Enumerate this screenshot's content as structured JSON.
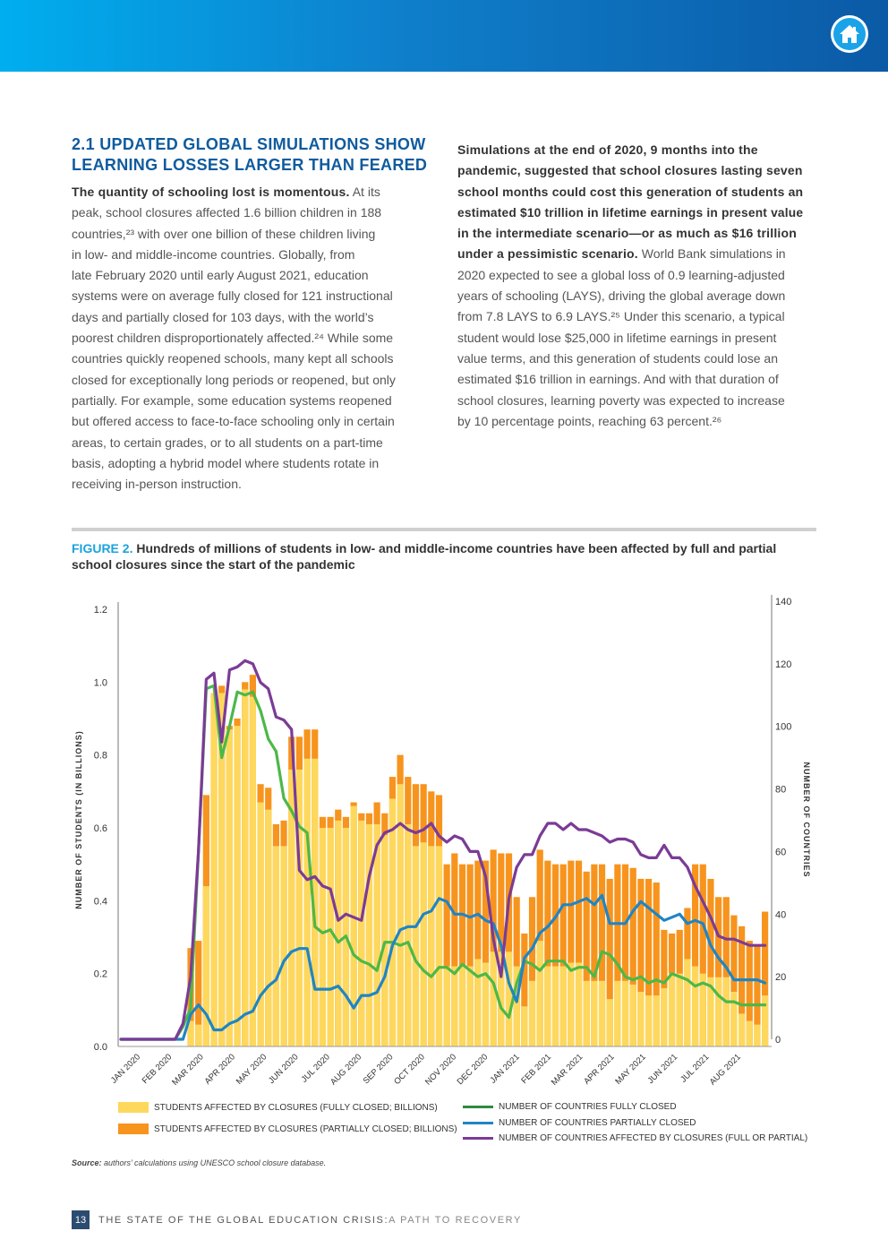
{
  "header": {
    "home_icon": "home-icon"
  },
  "section": {
    "heading_lines": [
      "2.1 UPDATED GLOBAL SIMULATIONS SHOW",
      "LEARNING LOSSES LARGER THAN FEARED"
    ],
    "left_lines": [
      {
        "b": "The quantity of schooling lost is momentous.",
        "t": " At its"
      },
      {
        "t": "peak, school closures affected 1.6 billion children in 188"
      },
      {
        "t": "countries,²³ with over one billion of these children living"
      },
      {
        "t": "in low- and middle-income countries. Globally, from"
      },
      {
        "t": "late February 2020 until early August 2021, education"
      },
      {
        "t": "systems were on average fully closed for 121 instructional"
      },
      {
        "t": "days and partially closed for 103 days, with the world’s"
      },
      {
        "t": "poorest children disproportionately affected.²⁴ While some"
      },
      {
        "t": "countries quickly reopened schools, many kept all schools"
      },
      {
        "t": "closed for exceptionally long periods or reopened, but only"
      },
      {
        "t": "partially. For example, some education systems reopened"
      },
      {
        "t": "but offered access to face-to-face schooling only in certain"
      },
      {
        "t": "areas, to certain grades, or to all students on a part-time"
      },
      {
        "t": "basis, adopting a hybrid model where students rotate in"
      },
      {
        "t": "receiving in-person instruction."
      }
    ],
    "right_lines": [
      {
        "b": "Simulations at the end of 2020, 9 months into the"
      },
      {
        "b": "pandemic, suggested that school closures lasting seven"
      },
      {
        "b": "school months could cost this generation of students an"
      },
      {
        "b": "estimated $10 trillion in lifetime earnings in present value"
      },
      {
        "b": "in the intermediate scenario—or as much as $16 trillion"
      },
      {
        "b": "under a pessimistic scenario.",
        "t": " World Bank simulations in"
      },
      {
        "t": "2020 expected to see a global loss of 0.9 learning-adjusted"
      },
      {
        "t": "years of schooling (LAYS), driving the global average down"
      },
      {
        "t": "from 7.8 LAYS to 6.9 LAYS.²⁵ Under this scenario, a typical"
      },
      {
        "t": "student would lose $25,000 in lifetime earnings in present"
      },
      {
        "t": "value terms, and this generation of students could lose an"
      },
      {
        "t": "estimated $16 trillion in earnings. And with that duration of"
      },
      {
        "t": "school closures, learning poverty was expected to increase"
      },
      {
        "t": "by 10 percentage points, reaching 63 percent.²⁶"
      }
    ]
  },
  "figure": {
    "label": "FIGURE 2.",
    "title_line1": " Hundreds of millions of students in low- and middle-income countries have been affected by full and partial",
    "title_line2": "school closures since the start of the pandemic",
    "source_label": "Source:",
    "source_text": " authors’ calculations using UNESCO school closure database."
  },
  "chart_data": {
    "type": "bar+line",
    "title": "Hundreds of millions of students in low- and middle-income countries have been affected by full and partial school closures since the start of the pandemic",
    "ylabel": "NUMBER OF STUDENTS (IN BILLIONS)",
    "y2label": "NUMBER OF COUNTRIES",
    "ylim": [
      0,
      1.2
    ],
    "y2lim": [
      0,
      140
    ],
    "yticks": [
      "0.0",
      "0.2",
      "0.4",
      "0.6",
      "0.8",
      "1.0",
      "1.2"
    ],
    "y2ticks": [
      "0",
      "20",
      "40",
      "60",
      "80",
      "100",
      "120",
      "140"
    ],
    "xticks": [
      "JAN 2020",
      "FEB 2020",
      "MAR 2020",
      "APR 2020",
      "MAY 2020",
      "JUN 2020",
      "JUL 2020",
      "AUG 2020",
      "SEP 2020",
      "OCT 2020",
      "NOV 2020",
      "DEC 2020",
      "JAN 2021",
      "FEB 2021",
      "MAR 2021",
      "APR 2021",
      "MAY 2021",
      "JUN 2021",
      "JUL 2021",
      "AUG 2021"
    ],
    "x_unit": "weeks from Jan 2020",
    "bars_total": [
      0,
      0,
      0,
      0,
      0,
      0,
      0,
      0,
      0,
      0.27,
      0.29,
      0.69,
      0.97,
      0.99,
      0.88,
      0.9,
      1.0,
      1.02,
      0.72,
      0.71,
      0.61,
      0.62,
      0.85,
      0.85,
      0.87,
      0.87,
      0.63,
      0.63,
      0.65,
      0.63,
      0.67,
      0.64,
      0.64,
      0.67,
      0.64,
      0.74,
      0.8,
      0.74,
      0.72,
      0.72,
      0.7,
      0.69,
      0.5,
      0.53,
      0.5,
      0.5,
      0.51,
      0.51,
      0.54,
      0.53,
      0.53,
      0.41,
      0.31,
      0.41,
      0.54,
      0.51,
      0.5,
      0.5,
      0.51,
      0.51,
      0.48,
      0.5,
      0.5,
      0.46,
      0.5,
      0.5,
      0.49,
      0.46,
      0.46,
      0.45,
      0.32,
      0.31,
      0.32,
      0.38,
      0.5,
      0.5,
      0.46,
      0.41,
      0.41,
      0.36,
      0.33,
      0.29,
      0.28,
      0.37
    ],
    "bars_full": [
      0,
      0,
      0,
      0,
      0,
      0,
      0,
      0,
      0,
      0.07,
      0.06,
      0.44,
      0.97,
      0.97,
      0.87,
      0.88,
      0.98,
      0.96,
      0.67,
      0.65,
      0.55,
      0.55,
      0.76,
      0.76,
      0.79,
      0.79,
      0.6,
      0.6,
      0.62,
      0.6,
      0.66,
      0.62,
      0.61,
      0.61,
      0.58,
      0.68,
      0.72,
      0.61,
      0.55,
      0.56,
      0.55,
      0.55,
      0.22,
      0.22,
      0.22,
      0.22,
      0.24,
      0.23,
      0.26,
      0.26,
      0.26,
      0.22,
      0.11,
      0.18,
      0.29,
      0.22,
      0.22,
      0.22,
      0.23,
      0.23,
      0.18,
      0.18,
      0.18,
      0.13,
      0.18,
      0.18,
      0.17,
      0.15,
      0.14,
      0.14,
      0.16,
      0.2,
      0.2,
      0.24,
      0.22,
      0.2,
      0.19,
      0.19,
      0.19,
      0.15,
      0.09,
      0.07,
      0.06,
      0.14
    ],
    "series": [
      {
        "name": "NUMBER OF COUNTRIES FULLY CLOSED",
        "color": "#4cb848",
        "legend_color": "#2e8b3e",
        "values": [
          0,
          0,
          0,
          0,
          0,
          0,
          0,
          0,
          4,
          10,
          60,
          112,
          113,
          90,
          100,
          111,
          110,
          111,
          105,
          96,
          92,
          77,
          73,
          68,
          66,
          36,
          34,
          35,
          31,
          33,
          27,
          25,
          24,
          22,
          31,
          31,
          30,
          31,
          25,
          22,
          20,
          23,
          23,
          21,
          24,
          22,
          20,
          21,
          18,
          10,
          7,
          18,
          25,
          24,
          22,
          25,
          25,
          25,
          22,
          23,
          23,
          20,
          28,
          27,
          24,
          20,
          19,
          20,
          18,
          19,
          18,
          21,
          20,
          19,
          17,
          18,
          17,
          14,
          12,
          12,
          11,
          11,
          11,
          11
        ]
      },
      {
        "name": "NUMBER OF COUNTRIES PARTIALLY CLOSED",
        "color": "#1f85c4",
        "legend_color": "#1f85c4",
        "values": [
          0,
          0,
          0,
          0,
          0,
          0,
          0,
          0,
          0,
          8,
          11,
          8,
          3,
          3,
          5,
          6,
          8,
          9,
          14,
          17,
          19,
          25,
          28,
          29,
          29,
          16,
          16,
          16,
          17,
          14,
          10,
          14,
          14,
          15,
          20,
          30,
          35,
          36,
          36,
          40,
          41,
          45,
          44,
          40,
          40,
          39,
          40,
          38,
          37,
          30,
          18,
          12,
          26,
          29,
          34,
          36,
          39,
          43,
          43,
          44,
          45,
          43,
          46,
          37,
          37,
          37,
          41,
          44,
          42,
          40,
          38,
          39,
          40,
          37,
          38,
          37,
          30,
          26,
          23,
          19,
          19,
          19,
          19,
          18
        ]
      },
      {
        "name": "NUMBER OF COUNTRIES AFFECTED BY CLOSURES (FULL OR PARTIAL)",
        "color": "#7b3b96",
        "legend_color": "#7b3b96",
        "values": [
          0,
          0,
          0,
          0,
          0,
          0,
          0,
          0,
          5,
          20,
          60,
          115,
          117,
          95,
          118,
          119,
          121,
          120,
          114,
          112,
          103,
          102,
          99,
          54,
          51,
          52,
          49,
          48,
          38,
          40,
          39,
          38,
          52,
          62,
          66,
          67,
          69,
          67,
          66,
          67,
          69,
          65,
          63,
          65,
          64,
          60,
          60,
          52,
          32,
          20,
          45,
          55,
          59,
          59,
          65,
          69,
          69,
          67,
          69,
          67,
          67,
          66,
          65,
          63,
          64,
          64,
          63,
          59,
          58,
          58,
          62,
          58,
          58,
          55,
          49,
          44,
          39,
          33,
          32,
          32,
          31,
          30,
          30,
          30
        ]
      }
    ],
    "bar_legend": [
      {
        "name": "STUDENTS AFFECTED BY CLOSURES (FULLY CLOSED; BILLIONS)",
        "color": "#fdd85d"
      },
      {
        "name": "STUDENTS AFFECTED BY CLOSURES (PARTIALLY CLOSED; BILLIONS)",
        "color": "#f7941d"
      }
    ],
    "legend_position": "bottom",
    "grid": false
  },
  "footer": {
    "page_number": "13",
    "title_main": "THE STATE OF THE GLOBAL EDUCATION CRISIS:",
    "title_sub": " A PATH TO RECOVERY"
  }
}
